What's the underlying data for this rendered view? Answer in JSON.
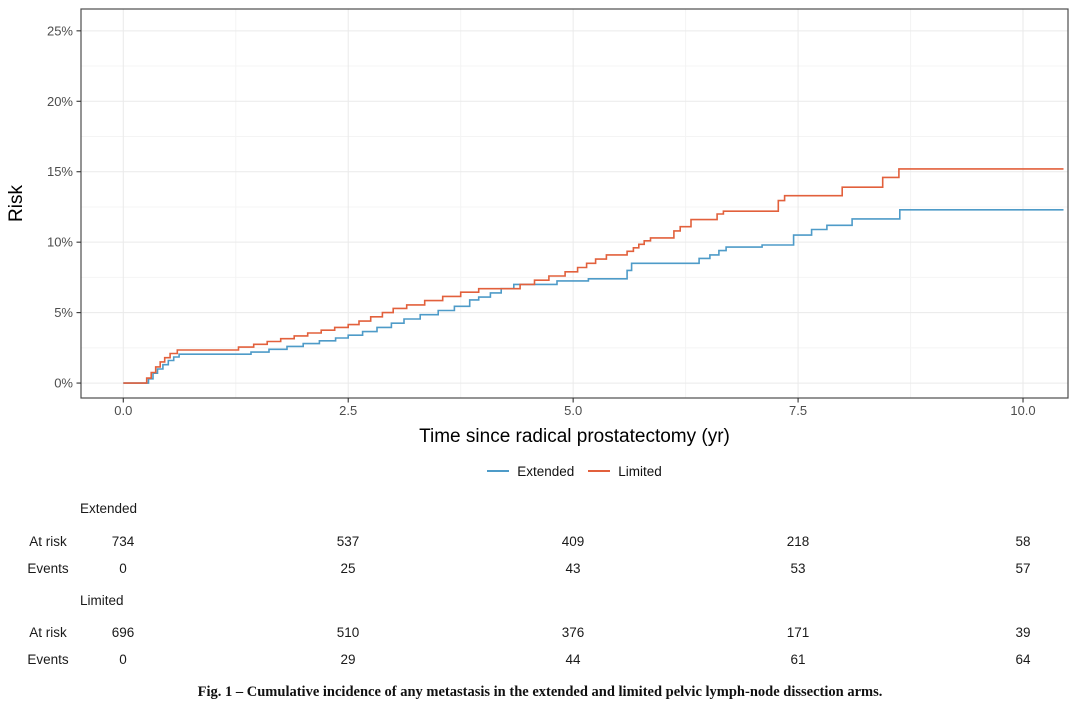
{
  "colors": {
    "extended": "#4E9BC8",
    "limited": "#E2603C",
    "grid_major": "#EAEAEA",
    "grid_minor": "#F4F4F4",
    "panel_border": "#4D4D4D",
    "tick_mark": "#333333",
    "tick_label": "#4D4D4D",
    "axis_title": "#000000"
  },
  "chart_data": {
    "type": "line",
    "variant": "step-cumulative-incidence",
    "title": "",
    "xlabel": "Time since radical prostatectomy (yr)",
    "ylabel": "Risk",
    "xlim": [
      -0.47,
      10.5
    ],
    "ylim": [
      -1.06,
      26.55
    ],
    "grid": true,
    "legend_position": "bottom",
    "x_ticks": [
      0,
      2.5,
      5,
      7.5,
      10
    ],
    "x_tick_labels": [
      "0.0",
      "2.5",
      "5.0",
      "7.5",
      "10.0"
    ],
    "x_minor_ticks": [
      1.25,
      3.75,
      6.25,
      8.75
    ],
    "y_ticks": [
      0,
      5,
      10,
      15,
      20,
      25
    ],
    "y_tick_labels": [
      "0%",
      "5%",
      "10%",
      "15%",
      "20%",
      "25%"
    ],
    "y_minor_ticks": [
      2.5,
      7.5,
      12.5,
      17.5,
      22.5
    ],
    "series": [
      {
        "name": "Extended",
        "color": "#4E9BC8",
        "points": [
          [
            0,
            0
          ],
          [
            0.22,
            0
          ],
          [
            0.28,
            0.3
          ],
          [
            0.33,
            0.7
          ],
          [
            0.38,
            1.0
          ],
          [
            0.44,
            1.3
          ],
          [
            0.5,
            1.6
          ],
          [
            0.56,
            1.85
          ],
          [
            0.62,
            2.05
          ],
          [
            1.32,
            2.05
          ],
          [
            1.42,
            2.2
          ],
          [
            1.62,
            2.4
          ],
          [
            1.82,
            2.6
          ],
          [
            2.0,
            2.8
          ],
          [
            2.18,
            3.0
          ],
          [
            2.36,
            3.2
          ],
          [
            2.5,
            3.4
          ],
          [
            2.66,
            3.65
          ],
          [
            2.82,
            3.95
          ],
          [
            2.98,
            4.25
          ],
          [
            3.12,
            4.55
          ],
          [
            3.3,
            4.85
          ],
          [
            3.5,
            5.15
          ],
          [
            3.68,
            5.45
          ],
          [
            3.85,
            5.9
          ],
          [
            3.95,
            6.1
          ],
          [
            4.08,
            6.4
          ],
          [
            4.2,
            6.7
          ],
          [
            4.34,
            7.0
          ],
          [
            4.82,
            7.25
          ],
          [
            5.17,
            7.4
          ],
          [
            5.6,
            8.0
          ],
          [
            5.65,
            8.5
          ],
          [
            6.4,
            8.85
          ],
          [
            6.52,
            9.1
          ],
          [
            6.62,
            9.4
          ],
          [
            6.7,
            9.65
          ],
          [
            7.1,
            9.8
          ],
          [
            7.45,
            10.5
          ],
          [
            7.65,
            10.9
          ],
          [
            7.82,
            11.2
          ],
          [
            8.1,
            11.65
          ],
          [
            8.63,
            12.3
          ],
          [
            10.45,
            12.3
          ]
        ]
      },
      {
        "name": "Limited",
        "color": "#E2603C",
        "points": [
          [
            0,
            0
          ],
          [
            0.2,
            0
          ],
          [
            0.26,
            0.35
          ],
          [
            0.31,
            0.75
          ],
          [
            0.36,
            1.15
          ],
          [
            0.41,
            1.5
          ],
          [
            0.46,
            1.8
          ],
          [
            0.52,
            2.1
          ],
          [
            0.6,
            2.35
          ],
          [
            1.18,
            2.35
          ],
          [
            1.28,
            2.55
          ],
          [
            1.45,
            2.75
          ],
          [
            1.6,
            2.95
          ],
          [
            1.75,
            3.15
          ],
          [
            1.9,
            3.35
          ],
          [
            2.05,
            3.55
          ],
          [
            2.2,
            3.75
          ],
          [
            2.35,
            3.95
          ],
          [
            2.5,
            4.15
          ],
          [
            2.62,
            4.4
          ],
          [
            2.75,
            4.7
          ],
          [
            2.88,
            5.0
          ],
          [
            3.0,
            5.3
          ],
          [
            3.15,
            5.55
          ],
          [
            3.35,
            5.85
          ],
          [
            3.55,
            6.15
          ],
          [
            3.75,
            6.45
          ],
          [
            3.95,
            6.7
          ],
          [
            4.41,
            7.0
          ],
          [
            4.57,
            7.3
          ],
          [
            4.73,
            7.6
          ],
          [
            4.91,
            7.9
          ],
          [
            5.05,
            8.2
          ],
          [
            5.15,
            8.5
          ],
          [
            5.25,
            8.8
          ],
          [
            5.37,
            9.1
          ],
          [
            5.6,
            9.35
          ],
          [
            5.67,
            9.6
          ],
          [
            5.73,
            9.85
          ],
          [
            5.79,
            10.1
          ],
          [
            5.86,
            10.3
          ],
          [
            6.12,
            10.8
          ],
          [
            6.19,
            11.1
          ],
          [
            6.31,
            11.6
          ],
          [
            6.6,
            12.0
          ],
          [
            6.67,
            12.2
          ],
          [
            7.28,
            12.95
          ],
          [
            7.35,
            13.3
          ],
          [
            7.99,
            13.9
          ],
          [
            8.44,
            14.6
          ],
          [
            8.62,
            15.2
          ],
          [
            10.45,
            15.2
          ]
        ]
      }
    ]
  },
  "legend": {
    "items": [
      {
        "label": "Extended",
        "color": "#4E9BC8"
      },
      {
        "label": "Limited",
        "color": "#E2603C"
      }
    ]
  },
  "risk_table": {
    "times": [
      0,
      2.5,
      5,
      7.5,
      10
    ],
    "row_labels": {
      "at_risk": "At risk",
      "events": "Events"
    },
    "groups": [
      {
        "name": "Extended",
        "at_risk": [
          734,
          537,
          409,
          218,
          58
        ],
        "events": [
          0,
          25,
          43,
          53,
          57
        ]
      },
      {
        "name": "Limited",
        "at_risk": [
          696,
          510,
          376,
          171,
          39
        ],
        "events": [
          0,
          29,
          44,
          61,
          64
        ]
      }
    ]
  },
  "caption": "Fig. 1 – Cumulative incidence of any metastasis in the extended and limited pelvic lymph-node dissection arms."
}
